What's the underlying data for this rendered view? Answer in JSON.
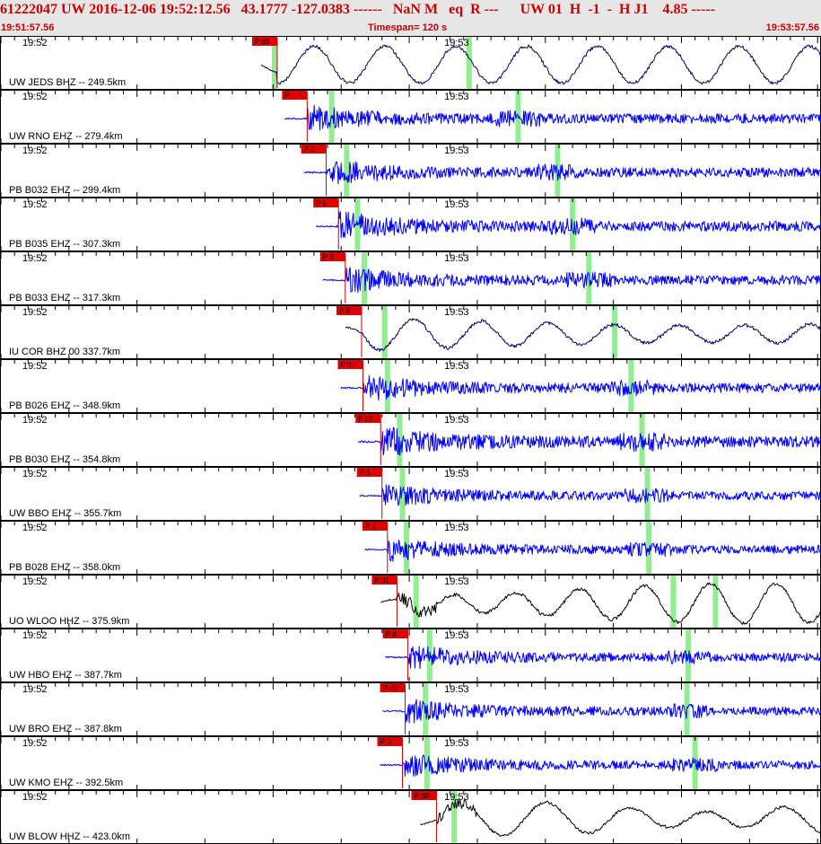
{
  "header": {
    "title": "61222047 UW 2016-12-06 19:52:12.56   43.1777 -127.0383 ------   NaN M   eq  R ---      UW 01  H  -1  -  H J1    4.85 -----",
    "start_time": "19:51:57.56",
    "timespan": "Timespan= 120 s",
    "end_time": "19:53:57.56"
  },
  "time_axis": {
    "start_label": "19:52",
    "mid_label": "19:53"
  },
  "colors": {
    "header_text": "#cc0000",
    "header_bg": "#e6e6e6",
    "pick_fill": "#e00000",
    "pick_line": "#cc0000",
    "highlight": "#90ee90",
    "trace_blue": "#0000ff",
    "trace_navy": "#000066",
    "trace_black": "#000000"
  },
  "traces": [
    {
      "label": "UW JEDS BHZ -- 249.5km",
      "pick_label": "P d3",
      "pick_t": 20.3,
      "color": "#000066",
      "style": "long",
      "amp": 0.65,
      "highlights": [
        20.1,
        34.4
      ]
    },
    {
      "label": "UW RNO EHZ -- 279.4km",
      "pick_label": "P .",
      "pick_t": 22.5,
      "color": "#0000ff",
      "style": "short",
      "amp": 0.55,
      "highlights": [
        24.3,
        38.0
      ]
    },
    {
      "label": "PB B032 EHZ -- 299.4km",
      "pick_label": "P 2",
      "pick_t": 23.9,
      "color": "#0000ff",
      "style": "short",
      "amp": 0.55,
      "highlights": [
        25.4,
        40.9
      ]
    },
    {
      "label": "PB B035 EHZ -- 307.3km",
      "pick_label": "P 0",
      "pick_t": 24.8,
      "color": "#0000ff",
      "style": "short",
      "amp": 0.6,
      "highlights": [
        26.2,
        42.0
      ]
    },
    {
      "label": "PB B033 EHZ -- 317.3km",
      "pick_label": "P 3",
      "pick_t": 25.3,
      "color": "#0000ff",
      "style": "short",
      "amp": 0.55,
      "highlights": [
        26.7,
        43.2
      ]
    },
    {
      "label": "IU COR BHZ 00 337.7km",
      "pick_label": "P 0",
      "pick_t": 26.5,
      "color": "#000066",
      "style": "long",
      "amp": 0.7,
      "highlights": [
        28.2,
        45.1
      ]
    },
    {
      "label": "PB B026 EHZ -- 348.9km",
      "pick_label": "P 0",
      "pick_t": 26.6,
      "color": "#0000ff",
      "style": "short",
      "amp": 0.55,
      "highlights": [
        28.4,
        46.3
      ]
    },
    {
      "label": "PB B030 EHZ -- 354.8km",
      "pick_label": "P c2",
      "pick_t": 27.9,
      "color": "#0000ff",
      "style": "short",
      "amp": 0.65,
      "highlights": [
        29.3,
        47.1
      ]
    },
    {
      "label": "UW BBO EHZ -- 355.7km",
      "pick_label": "P 1",
      "pick_t": 28.0,
      "color": "#0000ff",
      "style": "short",
      "amp": 0.5,
      "highlights": [
        29.5,
        47.5
      ]
    },
    {
      "label": "PB B028 EHZ -- 358.0km",
      "pick_label": "P 2",
      "pick_t": 28.4,
      "color": "#0000ff",
      "style": "short",
      "amp": 0.5,
      "highlights": [
        29.8,
        47.6
      ]
    },
    {
      "label": "UO WLOO HHZ -- 375.9km",
      "pick_label": "P d1",
      "pick_t": 29.1,
      "color": "#000000",
      "style": "long",
      "amp": 0.7,
      "highlights": [
        30.5,
        49.4,
        52.5
      ]
    },
    {
      "label": "UW HBO EHZ -- 387.7km",
      "pick_label": "P d",
      "pick_t": 29.9,
      "color": "#0000ff",
      "style": "short",
      "amp": 0.5,
      "highlights": [
        31.5,
        50.5
      ]
    },
    {
      "label": "UW BRO EHZ -- 387.8km",
      "pick_label": "P d0",
      "pick_t": 29.7,
      "color": "#0000ff",
      "style": "short",
      "amp": 0.5,
      "highlights": [
        31.2,
        50.4
      ]
    },
    {
      "label": "UW KMO EHZ -- 392.5km",
      "pick_label": "P 0",
      "pick_t": 29.5,
      "color": "#0000ff",
      "style": "short",
      "amp": 0.5,
      "highlights": [
        31.3,
        51.0
      ]
    },
    {
      "label": "UW BLOW HHZ -- 423.0km",
      "pick_label": "P d0",
      "pick_t": 32.0,
      "color": "#000000",
      "style": "long",
      "amp": 0.6,
      "highlights": [
        33.3
      ]
    }
  ]
}
